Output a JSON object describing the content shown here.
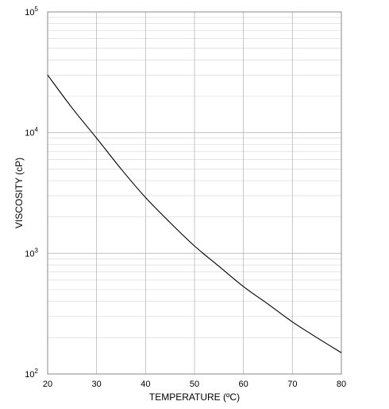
{
  "chart_data": {
    "type": "line",
    "title": "",
    "xlabel": "TEMPERATURE (ºC)",
    "ylabel": "VISCOSITY (cP)",
    "xlim": [
      20,
      80
    ],
    "ylim": [
      100,
      100000
    ],
    "y_scale": "log",
    "grid": true,
    "x_ticks": [
      "20",
      "30",
      "40",
      "50",
      "60",
      "70",
      "80"
    ],
    "y_ticks": [
      {
        "base": "10",
        "exp": "2"
      },
      {
        "base": "10",
        "exp": "3"
      },
      {
        "base": "10",
        "exp": "4"
      },
      {
        "base": "10",
        "exp": "5"
      }
    ],
    "series": [
      {
        "x": [
          20,
          25,
          30,
          35,
          40,
          45,
          50,
          55,
          60,
          65,
          70,
          75,
          80
        ],
        "y": [
          30000,
          16000,
          9000,
          5000,
          2900,
          1800,
          1150,
          780,
          530,
          380,
          270,
          200,
          150
        ]
      }
    ]
  }
}
